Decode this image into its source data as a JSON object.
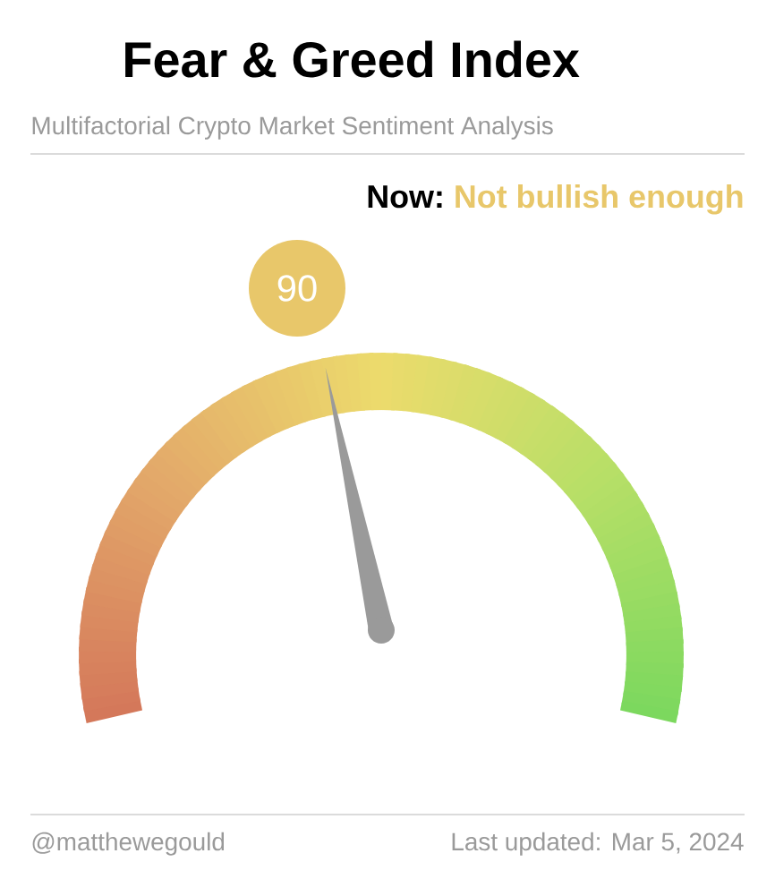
{
  "chart_data": {
    "type": "other",
    "title": "Fear & Greed Index",
    "subtitle": "Multifactorial Crypto Market Sentiment Analysis",
    "values": [
      90
    ],
    "data_labels": true,
    "color": "#e8c76a",
    "annotations": [
      "Now:",
      "Not bullish enough",
      "@matthewegould",
      "Last updated: Mar 5, 2024"
    ]
  }
}
